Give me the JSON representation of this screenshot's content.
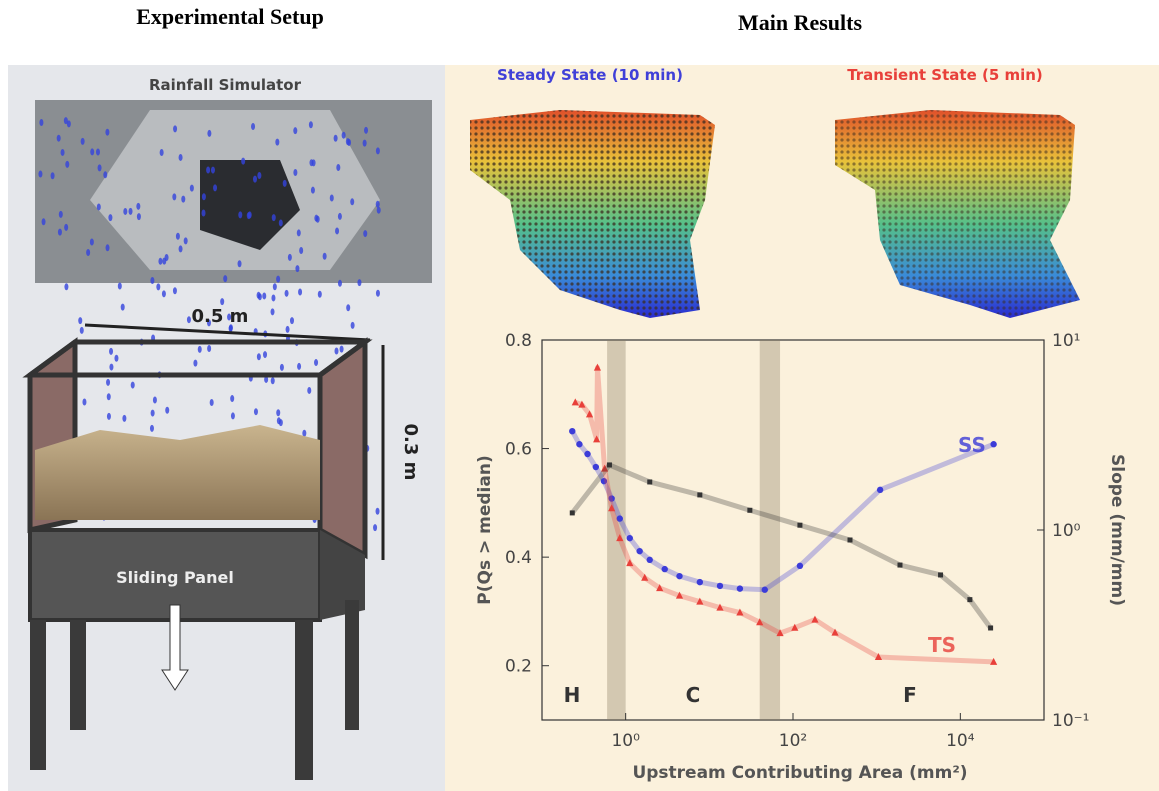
{
  "headers": {
    "left": "Experimental Setup",
    "right": "Main Results"
  },
  "setup": {
    "simulator": "Rainfall Simulator",
    "width": "0.5 m",
    "height": "0.3 m",
    "panel": "Sliding Panel"
  },
  "maps": {
    "steady": "Steady State (10 min)",
    "transient": "Transient State (5 min)"
  },
  "chart_data": {
    "type": "scatter",
    "xlabel": "Upstream Contributing Area (mm²)",
    "ylabel": "P(Qs > median)",
    "y2label": "Slope (mm/mm)",
    "xlim": [
      0.1,
      100000
    ],
    "xscale": "log",
    "xticks": [
      {
        "value": 1,
        "label": "10⁰"
      },
      {
        "value": 100,
        "label": "10²"
      },
      {
        "value": 10000,
        "label": "10⁴"
      }
    ],
    "ylim": [
      0.1,
      0.8
    ],
    "yticks": [
      0.2,
      0.4,
      0.6,
      0.8
    ],
    "y2lim": [
      0.1,
      10
    ],
    "y2scale": "log",
    "y2ticks": [
      {
        "value": 0.1,
        "label": "10⁻¹"
      },
      {
        "value": 1,
        "label": "10⁰"
      },
      {
        "value": 10,
        "label": "10¹"
      }
    ],
    "bands": [
      [
        0.6,
        1.0
      ],
      [
        40,
        70
      ]
    ],
    "annotations": [
      "H",
      "C",
      "F"
    ],
    "series": [
      {
        "name": "SS",
        "color": "#3c3cd8",
        "marker": "circle",
        "x": [
          0.23,
          0.28,
          0.35,
          0.44,
          0.55,
          0.68,
          0.85,
          1.12,
          1.47,
          1.94,
          2.93,
          4.4,
          7.7,
          13.4,
          23.2,
          46,
          121,
          1100,
          25000
        ],
        "values": [
          0.632,
          0.608,
          0.59,
          0.566,
          0.54,
          0.508,
          0.471,
          0.435,
          0.411,
          0.395,
          0.378,
          0.365,
          0.354,
          0.347,
          0.342,
          0.34,
          0.384,
          0.524,
          0.608
        ]
      },
      {
        "name": "TS",
        "color": "#e8403a",
        "marker": "triangle",
        "x": [
          0.25,
          0.3,
          0.37,
          0.45,
          0.46,
          0.56,
          0.68,
          0.85,
          1.12,
          1.69,
          2.55,
          4.4,
          7.7,
          13.4,
          23.2,
          40,
          70,
          105,
          183,
          318,
          1050,
          25000
        ],
        "values": [
          0.685,
          0.681,
          0.663,
          0.617,
          0.749,
          0.563,
          0.49,
          0.435,
          0.389,
          0.362,
          0.343,
          0.329,
          0.318,
          0.307,
          0.298,
          0.28,
          0.26,
          0.27,
          0.285,
          0.261,
          0.216,
          0.207
        ]
      },
      {
        "color": "#333333",
        "marker": "square",
        "axis": "y2",
        "x": [
          0.23,
          0.64,
          1.94,
          7.7,
          30.5,
          121,
          480,
          1900,
          5800,
          13000,
          23000
        ],
        "values": [
          1.23,
          2.2,
          1.79,
          1.53,
          1.27,
          1.06,
          0.886,
          0.654,
          0.58,
          0.43,
          0.305
        ]
      }
    ]
  }
}
